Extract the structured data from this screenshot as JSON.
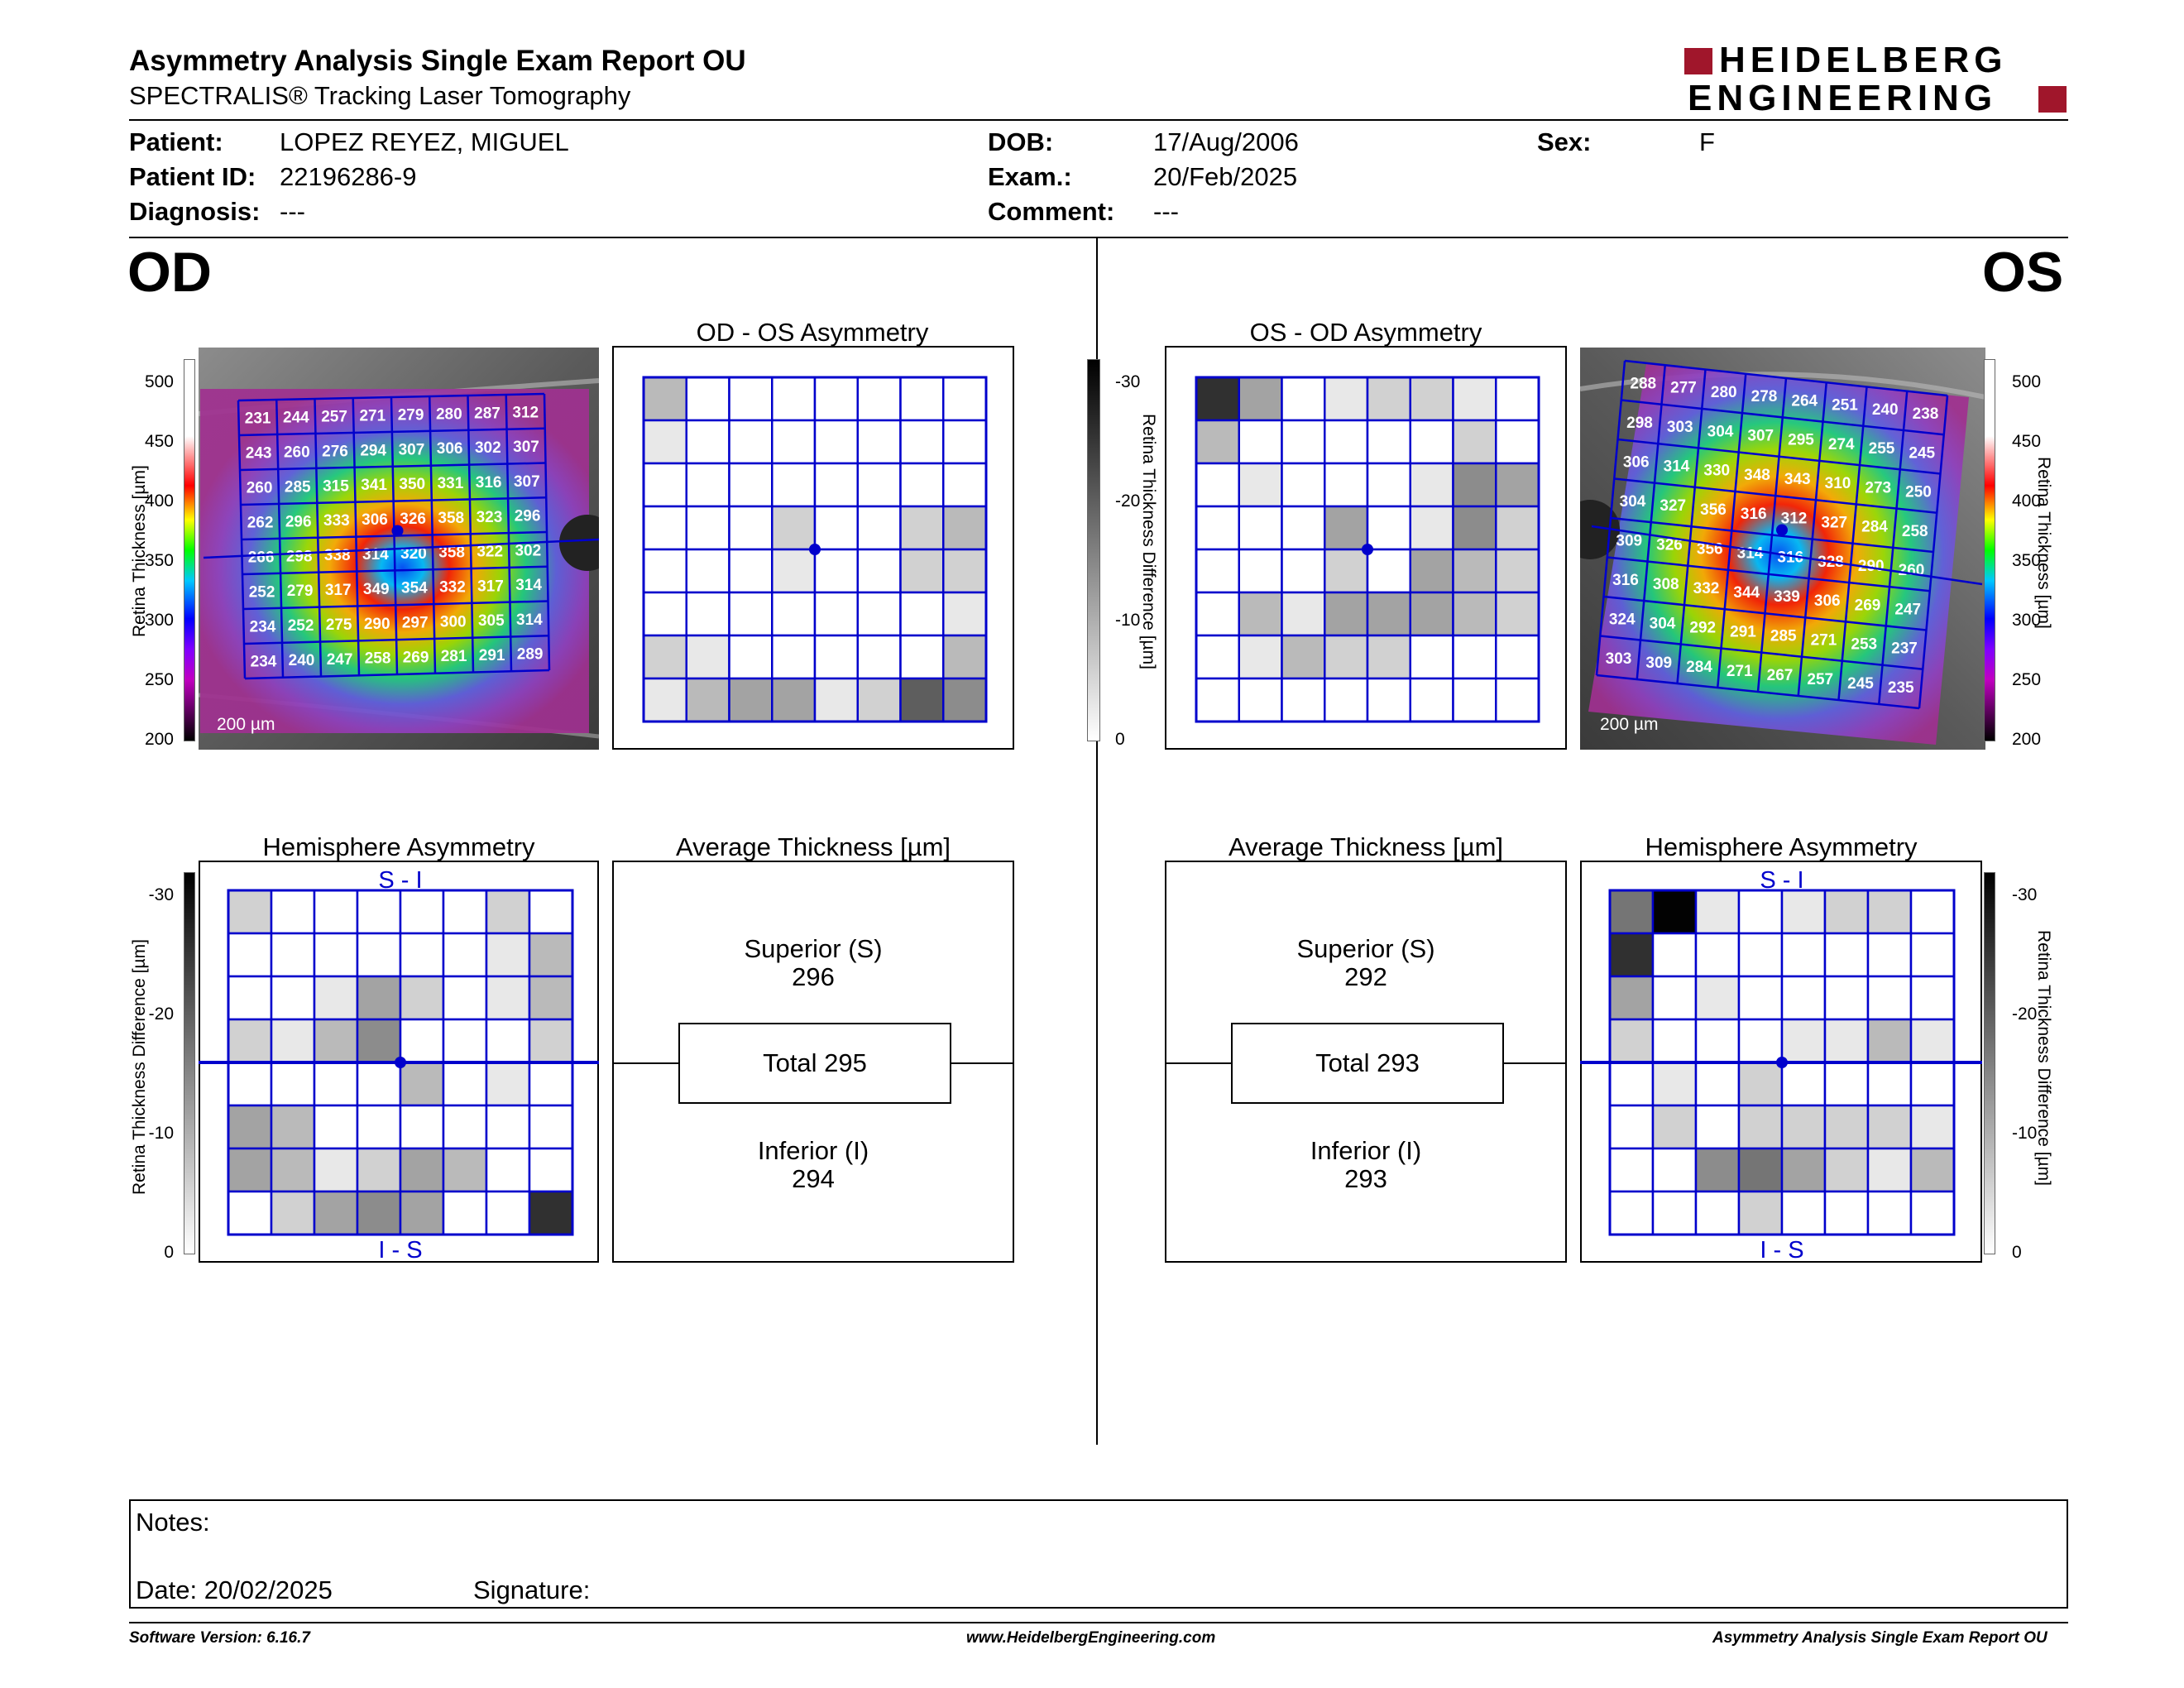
{
  "header": {
    "title": "Asymmetry Analysis Single Exam Report OU",
    "subtitle": "SPECTRALIS® Tracking Laser Tomography",
    "logo_line1": "HEIDELBERG",
    "logo_line2": "ENGINEERING"
  },
  "patient": {
    "patient_label": "Patient:",
    "patient_value": "LOPEZ REYEZ, MIGUEL",
    "id_label": "Patient ID:",
    "id_value": "22196286-9",
    "diagnosis_label": "Diagnosis:",
    "diagnosis_value": "---",
    "dob_label": "DOB:",
    "dob_value": "17/Aug/2006",
    "exam_label": "Exam.:",
    "exam_value": "20/Feb/2025",
    "comment_label": "Comment:",
    "comment_value": "---",
    "sex_label": "Sex:",
    "sex_value": "F"
  },
  "od": {
    "eye_label": "OD",
    "asym_title": "OD - OS Asymmetry",
    "hemi_title": "Hemisphere Asymmetry",
    "avg_title": "Average Thickness [µm]",
    "superior_label": "Superior (S)",
    "superior_value": "296",
    "total_label": "Total 295",
    "inferior_label": "Inferior (I)",
    "inferior_value": "294",
    "scale": "200 µm",
    "si": "S - I",
    "is": "I - S",
    "thickness": [
      [
        231,
        244,
        257,
        271,
        279,
        280,
        287,
        312
      ],
      [
        243,
        260,
        276,
        294,
        307,
        306,
        302,
        307
      ],
      [
        260,
        285,
        315,
        341,
        350,
        331,
        316,
        307
      ],
      [
        262,
        296,
        333,
        306,
        326,
        358,
        323,
        296
      ],
      [
        266,
        298,
        338,
        314,
        320,
        358,
        322,
        302
      ],
      [
        252,
        279,
        317,
        349,
        354,
        332,
        317,
        314
      ],
      [
        234,
        252,
        275,
        290,
        297,
        300,
        305,
        314
      ],
      [
        234,
        240,
        247,
        258,
        269,
        281,
        291,
        289
      ]
    ],
    "asym_gray": [
      [
        3,
        0,
        0,
        0,
        0,
        0,
        0,
        0
      ],
      [
        1,
        0,
        0,
        0,
        0,
        0,
        0,
        0
      ],
      [
        0,
        0,
        0,
        0,
        0,
        0,
        0,
        0
      ],
      [
        0,
        0,
        0,
        2,
        0,
        0,
        2,
        3
      ],
      [
        0,
        0,
        0,
        1,
        0,
        0,
        2,
        2
      ],
      [
        0,
        0,
        0,
        0,
        0,
        0,
        0,
        1
      ],
      [
        2,
        1,
        0,
        0,
        0,
        0,
        0,
        3
      ],
      [
        1,
        3,
        4,
        4,
        1,
        2,
        7,
        5
      ]
    ],
    "hemi_gray": [
      [
        2,
        0,
        0,
        0,
        0,
        0,
        2,
        0
      ],
      [
        0,
        0,
        0,
        0,
        0,
        0,
        1,
        3
      ],
      [
        0,
        0,
        1,
        4,
        2,
        0,
        1,
        3
      ],
      [
        2,
        1,
        3,
        5,
        0,
        0,
        0,
        2
      ],
      [
        0,
        0,
        0,
        0,
        3,
        0,
        1,
        0
      ],
      [
        4,
        3,
        0,
        0,
        0,
        0,
        0,
        0
      ],
      [
        4,
        3,
        1,
        2,
        4,
        3,
        0,
        0
      ],
      [
        0,
        2,
        4,
        5,
        4,
        0,
        0,
        9
      ]
    ]
  },
  "os": {
    "eye_label": "OS",
    "asym_title": "OS - OD Asymmetry",
    "hemi_title": "Hemisphere Asymmetry",
    "avg_title": "Average Thickness [µm]",
    "superior_label": "Superior (S)",
    "superior_value": "292",
    "total_label": "Total 293",
    "inferior_label": "Inferior (I)",
    "inferior_value": "293",
    "scale": "200 µm",
    "si": "S - I",
    "is": "I - S",
    "thickness": [
      [
        288,
        277,
        280,
        278,
        264,
        251,
        240,
        238
      ],
      [
        298,
        303,
        304,
        307,
        295,
        274,
        255,
        245
      ],
      [
        306,
        314,
        330,
        348,
        343,
        310,
        273,
        250
      ],
      [
        304,
        327,
        356,
        316,
        312,
        327,
        284,
        258
      ],
      [
        309,
        326,
        356,
        314,
        316,
        328,
        290,
        260
      ],
      [
        316,
        308,
        332,
        344,
        339,
        306,
        269,
        247
      ],
      [
        324,
        304,
        292,
        291,
        285,
        271,
        253,
        237
      ],
      [
        303,
        309,
        284,
        271,
        267,
        257,
        245,
        235
      ]
    ],
    "asym_gray": [
      [
        9,
        4,
        0,
        1,
        2,
        2,
        1,
        0
      ],
      [
        3,
        0,
        0,
        0,
        0,
        0,
        2,
        0
      ],
      [
        0,
        1,
        0,
        0,
        0,
        1,
        5,
        4
      ],
      [
        0,
        0,
        0,
        4,
        0,
        1,
        5,
        2
      ],
      [
        0,
        0,
        0,
        2,
        0,
        4,
        3,
        2
      ],
      [
        0,
        3,
        1,
        4,
        4,
        4,
        3,
        2
      ],
      [
        0,
        1,
        3,
        2,
        2,
        0,
        0,
        0
      ],
      [
        0,
        0,
        0,
        0,
        0,
        0,
        0,
        0
      ]
    ],
    "hemi_gray": [
      [
        6,
        11,
        1,
        0,
        1,
        2,
        2,
        0
      ],
      [
        9,
        0,
        0,
        0,
        0,
        0,
        0,
        0
      ],
      [
        4,
        0,
        1,
        0,
        0,
        0,
        0,
        0
      ],
      [
        2,
        0,
        0,
        0,
        1,
        1,
        3,
        1
      ],
      [
        0,
        1,
        0,
        2,
        0,
        0,
        0,
        0
      ],
      [
        0,
        2,
        0,
        2,
        2,
        2,
        2,
        1
      ],
      [
        0,
        0,
        5,
        6,
        4,
        2,
        1,
        3
      ],
      [
        0,
        0,
        0,
        2,
        0,
        0,
        0,
        0
      ]
    ]
  },
  "scales": {
    "thickness_ticks": [
      "500",
      "450",
      "400",
      "350",
      "300",
      "250",
      "200"
    ],
    "thickness_label": "Retina  Thickness [µm]",
    "diff_ticks": [
      "-30",
      "-20",
      "-10",
      "0"
    ],
    "diff_label": "Retina Thickness Difference [µm]"
  },
  "notes": {
    "notes_label": "Notes:",
    "date_label": "Date: 20/02/2025",
    "signature_label": "Signature:"
  },
  "footer": {
    "software": "Software Version: 6.16.7",
    "website": "www.HeidelbergEngineering.com",
    "report": "Asymmetry Analysis Single Exam Report OU"
  }
}
